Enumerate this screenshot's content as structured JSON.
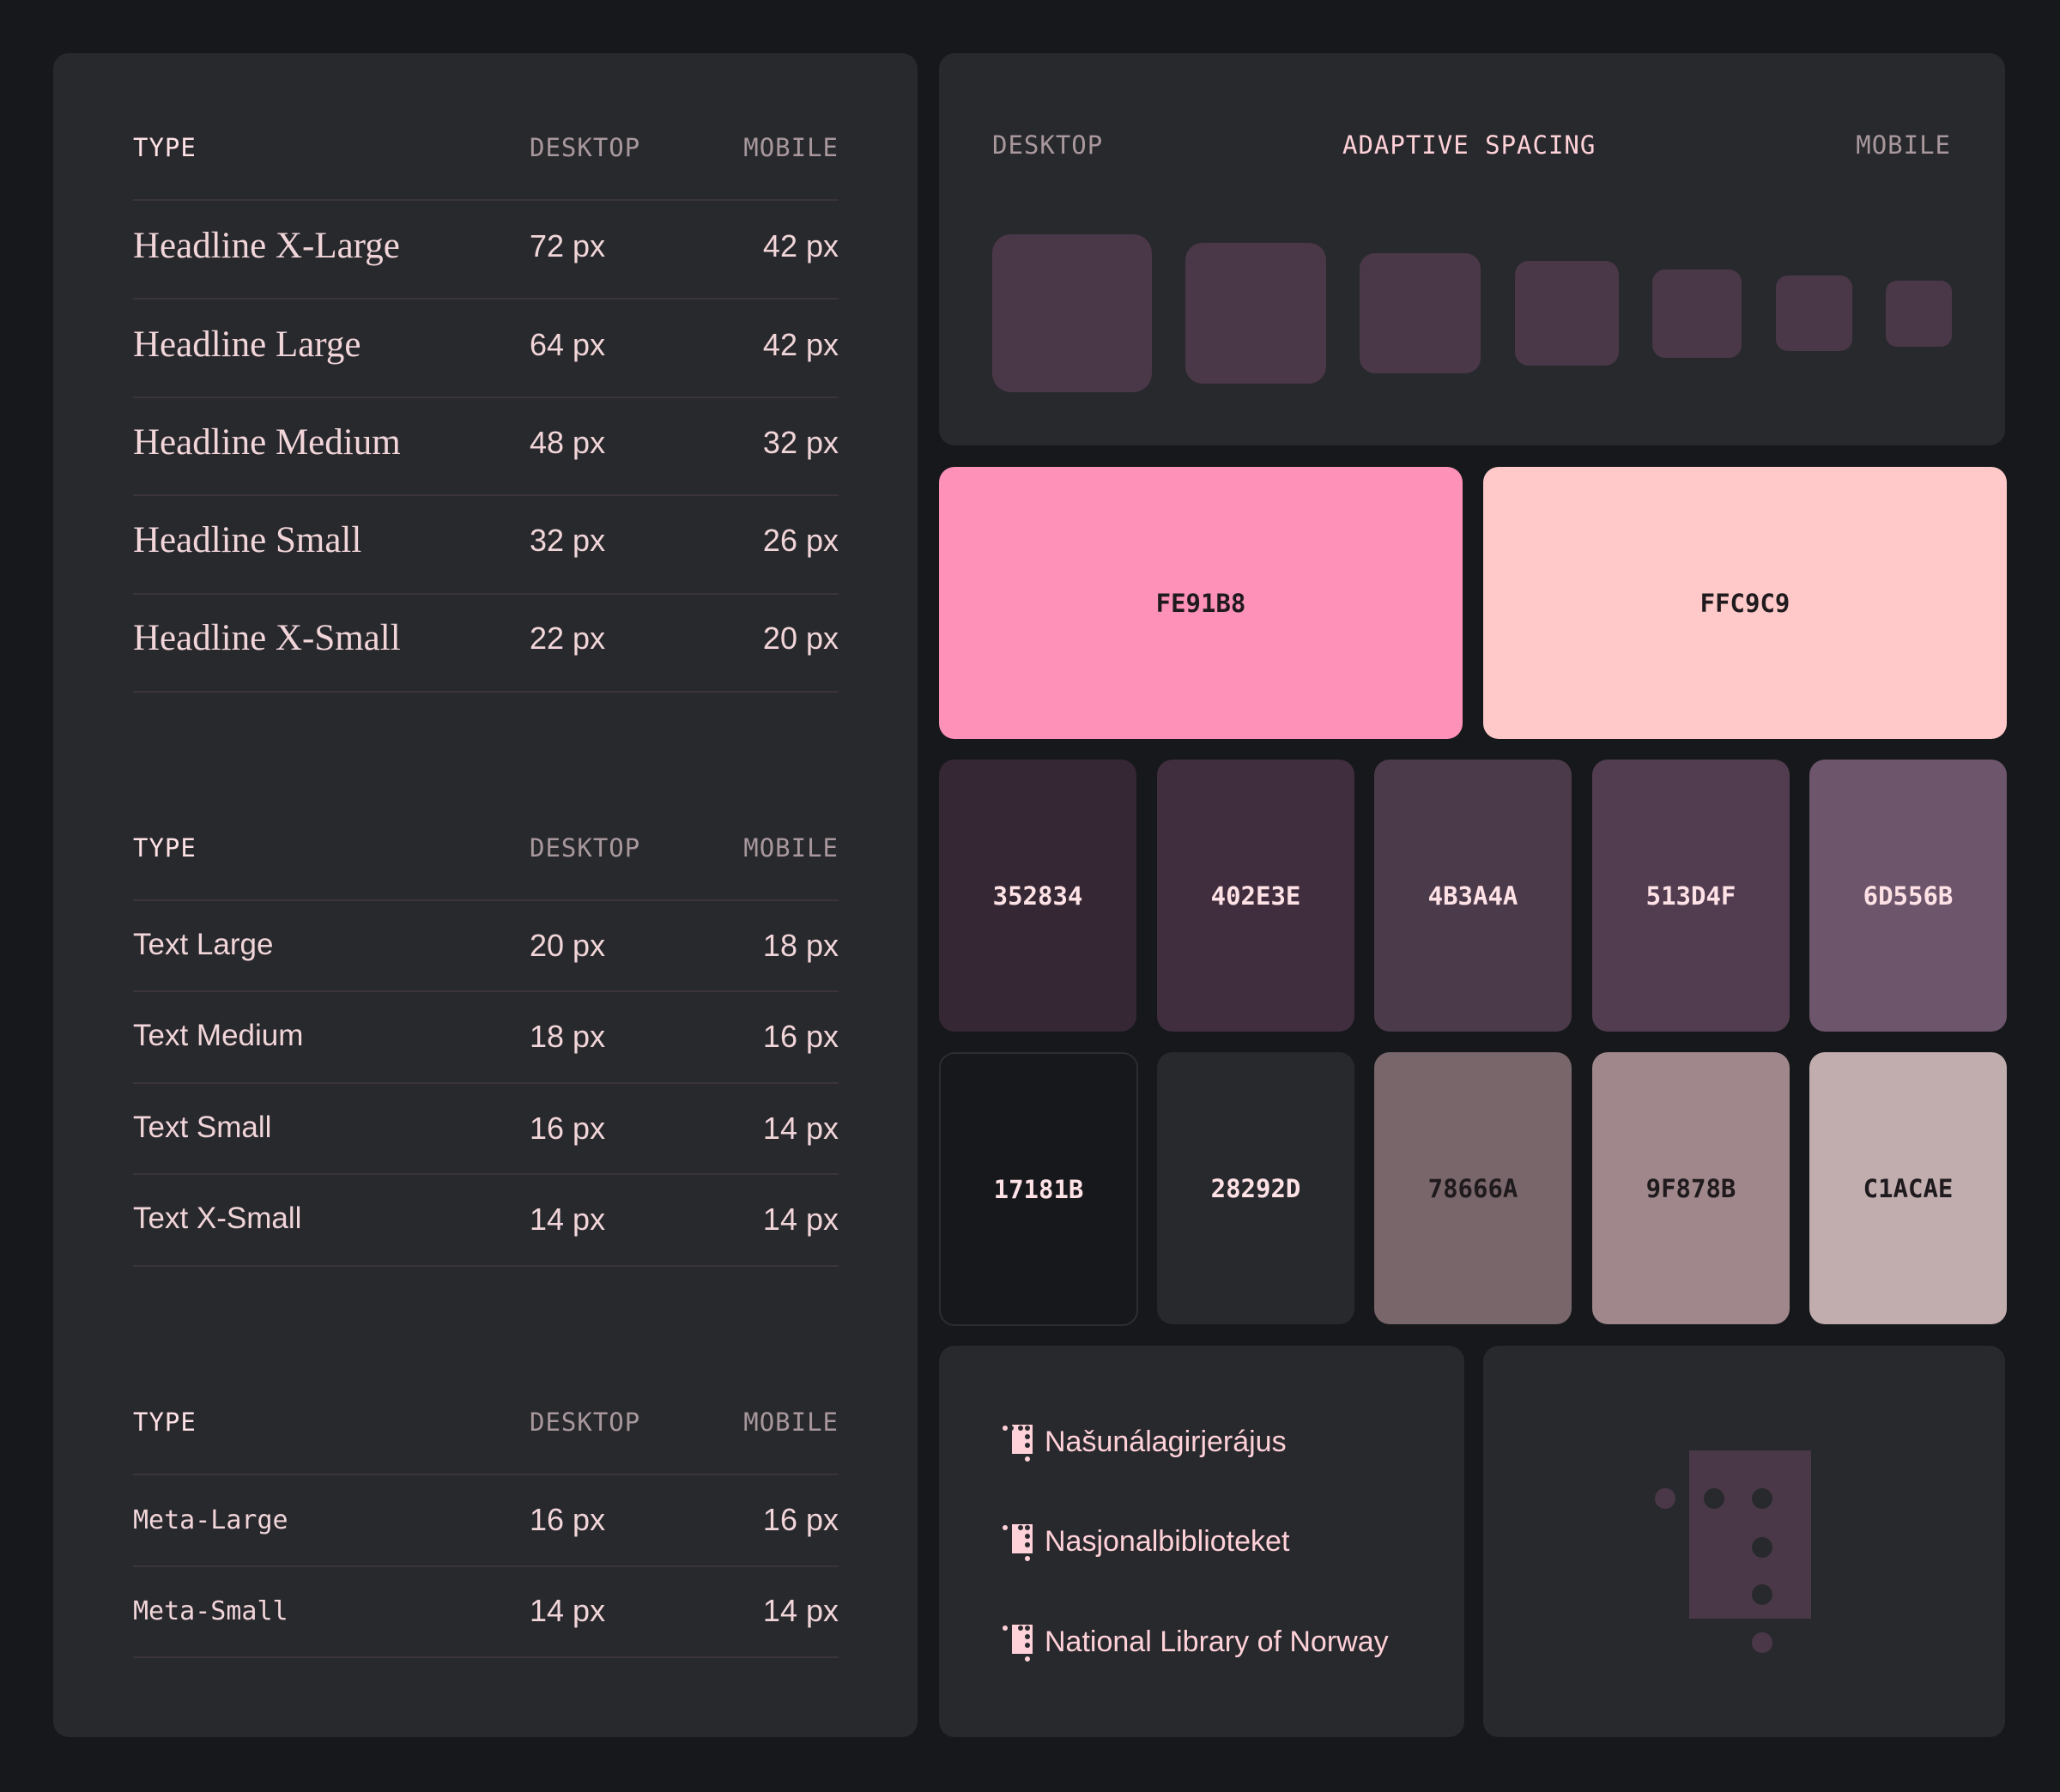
{
  "tables": [
    {
      "header": {
        "type": "TYPE",
        "desktop": "DESKTOP",
        "mobile": "MOBILE"
      },
      "rows": [
        {
          "name": "Headline X-Large",
          "desktop": "72 px",
          "mobile": "42 px"
        },
        {
          "name": "Headline Large",
          "desktop": "64 px",
          "mobile": "42 px"
        },
        {
          "name": "Headline Medium",
          "desktop": "48 px",
          "mobile": "32 px"
        },
        {
          "name": "Headline Small",
          "desktop": "32 px",
          "mobile": "26 px"
        },
        {
          "name": "Headline X-Small",
          "desktop": "22 px",
          "mobile": "20 px"
        }
      ]
    },
    {
      "header": {
        "type": "TYPE",
        "desktop": "DESKTOP",
        "mobile": "MOBILE"
      },
      "rows": [
        {
          "name": "Text Large",
          "desktop": "20 px",
          "mobile": "18 px"
        },
        {
          "name": "Text Medium",
          "desktop": "18 px",
          "mobile": "16 px"
        },
        {
          "name": "Text Small",
          "desktop": "16 px",
          "mobile": "14 px"
        },
        {
          "name": "Text X-Small",
          "desktop": "14 px",
          "mobile": "14 px"
        }
      ]
    },
    {
      "header": {
        "type": "TYPE",
        "desktop": "DESKTOP",
        "mobile": "MOBILE"
      },
      "rows": [
        {
          "name": "Meta-Large",
          "desktop": "16 px",
          "mobile": "16 px"
        },
        {
          "name": "Meta-Small",
          "desktop": "14 px",
          "mobile": "14 px"
        }
      ]
    }
  ],
  "spacing": {
    "desktop_label": "DESKTOP",
    "title": "ADAPTIVE SPACING",
    "mobile_label": "MOBILE",
    "square_color": "#4a3849"
  },
  "colors": {
    "primary": [
      {
        "hex": "FE91B8",
        "color": "#fe91b8"
      },
      {
        "hex": "FFC9C9",
        "color": "#ffc9c9"
      }
    ],
    "row1": [
      {
        "hex": "352834",
        "color": "#352834"
      },
      {
        "hex": "402E3E",
        "color": "#402e3e"
      },
      {
        "hex": "4B3A4A",
        "color": "#4b3a4a"
      },
      {
        "hex": "513D4F",
        "color": "#513d4f"
      },
      {
        "hex": "6D556B",
        "color": "#6d556b"
      }
    ],
    "row2": [
      {
        "hex": "17181B",
        "color": "#17181b"
      },
      {
        "hex": "28292D",
        "color": "#28292d"
      },
      {
        "hex": "78666A",
        "color": "#78666a"
      },
      {
        "hex": "9F878B",
        "color": "#9f878b"
      },
      {
        "hex": "C1ACAE",
        "color": "#c1acae"
      }
    ]
  },
  "library": {
    "icon": "library-logo-icon",
    "names": [
      "Našunálagirjerájus",
      "Nasjonalbiblioteket",
      "National Library of Norway"
    ]
  },
  "logo": {
    "icon": "library-logo-icon",
    "color": "#4a3849"
  }
}
